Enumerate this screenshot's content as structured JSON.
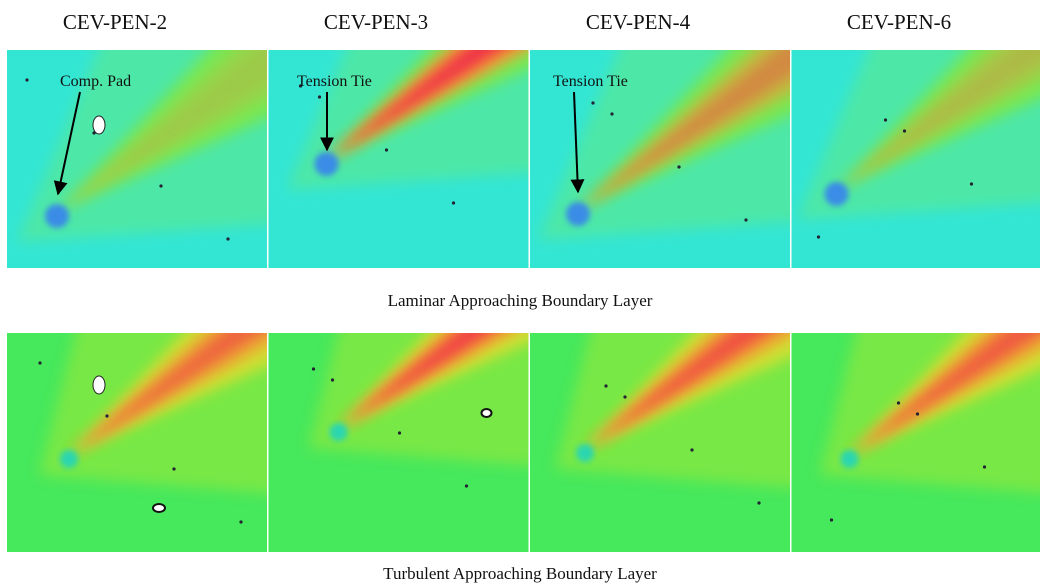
{
  "columns": [
    "CEV-PEN-2",
    "CEV-PEN-3",
    "CEV-PEN-4",
    "CEV-PEN-6"
  ],
  "annotations": [
    "Comp. Pad",
    "Tension Tie",
    "Tension Tie"
  ],
  "rows": [
    "Laminar Approaching Boundary Layer",
    "Turbulent Approaching Boundary Layer"
  ]
}
